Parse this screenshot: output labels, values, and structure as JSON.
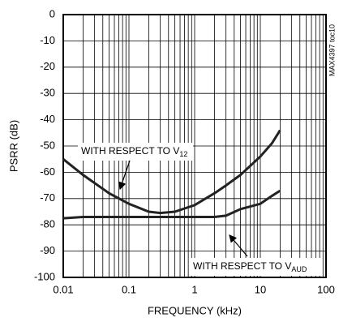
{
  "chart_data": {
    "type": "line",
    "xlabel": "FREQUENCY (kHz)",
    "ylabel": "PSRR (dB)",
    "side_label": "MAX4397 toc10",
    "x": [
      0.01,
      0.02,
      0.05,
      0.1,
      0.2,
      0.3,
      0.5,
      1,
      2,
      3,
      5,
      10,
      15,
      20
    ],
    "series": [
      {
        "name": "V12",
        "color": "#222222",
        "values": [
          -55,
          -61,
          -68,
          -72,
          -75,
          -75.5,
          -75,
          -72.5,
          -68,
          -65,
          -61,
          -54,
          -49,
          -44
        ]
      },
      {
        "name": "VAUD",
        "color": "#222222",
        "values": [
          -77.5,
          -77,
          -77,
          -77,
          -77,
          -77,
          -77,
          -77,
          -77,
          -76.5,
          -74,
          -72,
          -69,
          -67
        ]
      }
    ],
    "annotations": [
      {
        "text": "WITH RESPECT TO V",
        "sub": "12"
      },
      {
        "text": "WITH RESPECT TO V",
        "sub": "AUD"
      }
    ],
    "xscale": "log",
    "minor_grid": true,
    "grid": true,
    "xlim": [
      0.01,
      100
    ],
    "xticks": [
      0.01,
      0.1,
      1,
      10,
      100
    ],
    "ylim": [
      -100,
      0
    ],
    "yticks": [
      0,
      -10,
      -20,
      -30,
      -40,
      -50,
      -60,
      -70,
      -80,
      -90,
      -100
    ]
  }
}
